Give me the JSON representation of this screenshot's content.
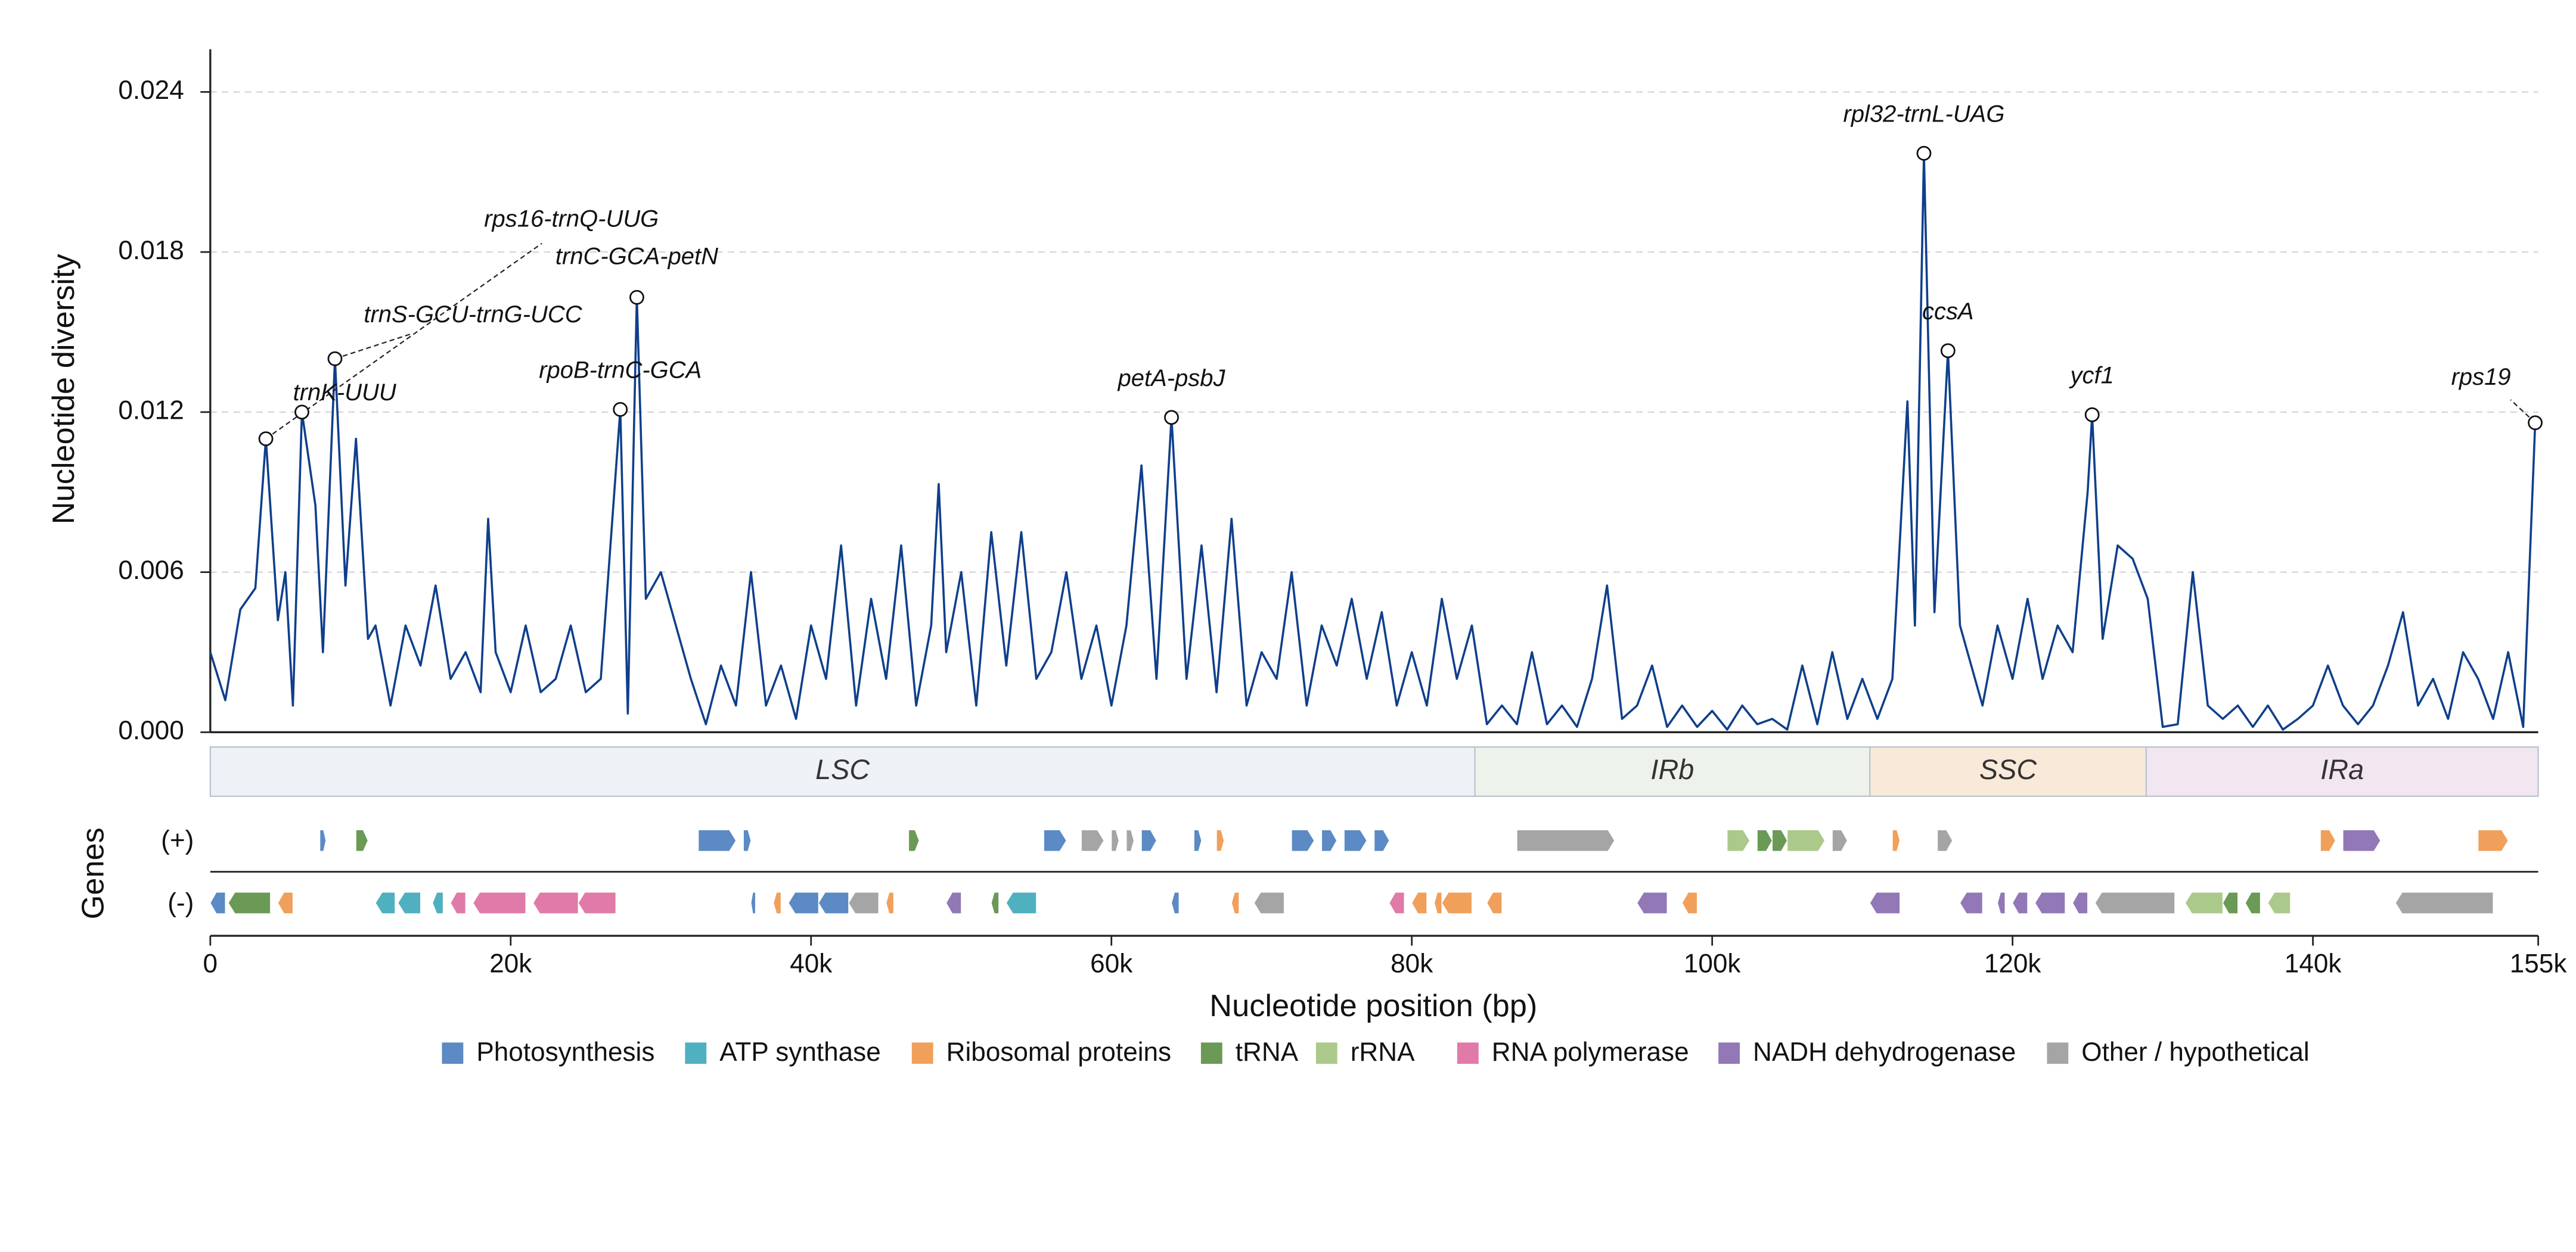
{
  "chart_data": {
    "type": "line",
    "ylabel": "Nucleotide diversity",
    "xlabel": "Nucleotide position (bp)",
    "color": "#0f3f8c",
    "grid": true,
    "xlim": [
      0,
      155000
    ],
    "ylim": [
      0,
      0.0256
    ],
    "yticks": [
      {
        "value": 0,
        "label": "0.000"
      },
      {
        "value": 0.006,
        "label": "0.006"
      },
      {
        "value": 0.012,
        "label": "0.012"
      },
      {
        "value": 0.018,
        "label": "0.018"
      },
      {
        "value": 0.024,
        "label": "0.024"
      }
    ],
    "xticks": [
      0,
      {
        "value": 20000,
        "label": "20k"
      },
      {
        "value": 40000,
        "label": "40k"
      },
      {
        "value": 60000,
        "label": "60k"
      },
      {
        "value": 80000,
        "label": "80k"
      },
      {
        "value": 100000,
        "label": "100k"
      },
      {
        "value": 120000,
        "label": "120k"
      },
      {
        "value": 140000,
        "label": "140k"
      },
      {
        "value": 155000,
        "label": "155k"
      }
    ],
    "x": [
      0,
      1000,
      2000,
      3000,
      3700,
      4500,
      5000,
      5500,
      6100,
      7000,
      7500,
      8300,
      9000,
      9700,
      10500,
      11000,
      12000,
      13000,
      14000,
      15000,
      16000,
      17000,
      18000,
      18500,
      19000,
      20000,
      21000,
      22000,
      23000,
      24000,
      25000,
      26000,
      27300,
      27800,
      28400,
      29000,
      30000,
      31000,
      32000,
      33000,
      34000,
      35000,
      36000,
      37000,
      38000,
      39000,
      40000,
      41000,
      42000,
      43000,
      44000,
      45000,
      46000,
      47000,
      48000,
      48500,
      49000,
      50000,
      51000,
      52000,
      53000,
      54000,
      55000,
      56000,
      57000,
      58000,
      59000,
      60000,
      61000,
      62000,
      63000,
      64000,
      65000,
      66000,
      67000,
      68000,
      69000,
      70000,
      71000,
      72000,
      73000,
      74000,
      75000,
      76000,
      77000,
      78000,
      79000,
      80000,
      81000,
      82000,
      83000,
      84000,
      85000,
      86000,
      87000,
      88000,
      89000,
      90000,
      91000,
      92000,
      93000,
      94000,
      95000,
      96000,
      97000,
      98000,
      99000,
      100000,
      101000,
      102000,
      103000,
      104000,
      105000,
      106000,
      107000,
      108000,
      109000,
      110000,
      111000,
      112000,
      113000,
      113500,
      114100,
      114800,
      115700,
      116500,
      117000,
      118000,
      119000,
      120000,
      121000,
      122000,
      123000,
      124000,
      125000,
      125300,
      126000,
      127000,
      128000,
      129000,
      130000,
      131000,
      132000,
      133000,
      134000,
      135000,
      136000,
      137000,
      138000,
      139000,
      140000,
      141000,
      142000,
      143000,
      144000,
      145000,
      146000,
      147000,
      148000,
      149000,
      150000,
      151000,
      152000,
      153000,
      154000,
      154800
    ],
    "values": [
      0.003,
      0.0012,
      0.0046,
      0.0054,
      0.011,
      0.0042,
      0.006,
      0.001,
      0.012,
      0.0085,
      0.003,
      0.014,
      0.0055,
      0.011,
      0.0035,
      0.004,
      0.001,
      0.004,
      0.0025,
      0.0055,
      0.002,
      0.003,
      0.0015,
      0.008,
      0.003,
      0.0015,
      0.004,
      0.0015,
      0.002,
      0.004,
      0.0015,
      0.002,
      0.0121,
      0.0007,
      0.0163,
      0.005,
      0.006,
      0.004,
      0.002,
      0.0003,
      0.0025,
      0.001,
      0.006,
      0.001,
      0.0025,
      0.0005,
      0.004,
      0.002,
      0.007,
      0.001,
      0.005,
      0.002,
      0.007,
      0.001,
      0.004,
      0.0093,
      0.003,
      0.006,
      0.001,
      0.0075,
      0.0025,
      0.0075,
      0.002,
      0.003,
      0.006,
      0.002,
      0.004,
      0.001,
      0.004,
      0.01,
      0.002,
      0.0118,
      0.002,
      0.007,
      0.0015,
      0.008,
      0.001,
      0.003,
      0.002,
      0.006,
      0.001,
      0.004,
      0.0025,
      0.005,
      0.002,
      0.0045,
      0.001,
      0.003,
      0.001,
      0.005,
      0.002,
      0.004,
      0.0003,
      0.001,
      0.0003,
      0.003,
      0.0003,
      0.001,
      0.0002,
      0.002,
      0.0055,
      0.0005,
      0.001,
      0.0025,
      0.0002,
      0.001,
      0.0002,
      0.0008,
      0.0001,
      0.001,
      0.0003,
      0.0005,
      0.0001,
      0.0025,
      0.0003,
      0.003,
      0.0005,
      0.002,
      0.0005,
      0.002,
      0.0124,
      0.004,
      0.0217,
      0.0045,
      0.0143,
      0.004,
      0.003,
      0.001,
      0.004,
      0.002,
      0.005,
      0.002,
      0.004,
      0.003,
      0.009,
      0.0119,
      0.0035,
      0.007,
      0.0065,
      0.005,
      0.0002,
      0.0003,
      0.006,
      0.001,
      0.0005,
      0.001,
      0.0002,
      0.001,
      0.0001,
      0.0005,
      0.001,
      0.0025,
      0.001,
      0.0003,
      0.001,
      0.0025,
      0.0045,
      0.001,
      0.002,
      0.0005,
      0.003,
      0.002,
      0.0005,
      0.003,
      0.0002,
      0.0116
    ],
    "annotations": [
      {
        "text": "rps16-trnQ-UUG",
        "x": 3700,
        "y": 0.011
      },
      {
        "text": "trnK-UUU",
        "x": 6100,
        "y": 0.012
      },
      {
        "text": "trnS-GCU-trnG-UCC",
        "x": 8300,
        "y": 0.014
      },
      {
        "text": "rpoB-trnC-GCA",
        "x": 27300,
        "y": 0.0121
      },
      {
        "text": "trnC-GCA-petN",
        "x": 28400,
        "y": 0.0163
      },
      {
        "text": "petA-psbJ",
        "x": 64000,
        "y": 0.0118
      },
      {
        "text": "rpl32-trnL-UAG",
        "x": 114100,
        "y": 0.0217
      },
      {
        "text": "ccsA",
        "x": 115700,
        "y": 0.0143
      },
      {
        "text": "ycf1",
        "x": 125300,
        "y": 0.0119
      },
      {
        "text": "rps19",
        "x": 154800,
        "y": 0.0116
      }
    ],
    "regions": [
      {
        "name": "LSC",
        "start": 0,
        "end": 84200,
        "color": "#eef2f6"
      },
      {
        "name": "IRb",
        "start": 84200,
        "end": 110500,
        "color": "#edf3ea"
      },
      {
        "name": "SSC",
        "start": 110500,
        "end": 128900,
        "color": "#f9e9d9"
      },
      {
        "name": "IRa",
        "start": 128900,
        "end": 155000,
        "color": "#f2e6f1"
      }
    ],
    "gene_axis_label": "Genes",
    "strand_labels": [
      "(+)",
      "(-)"
    ],
    "gene_categories": [
      {
        "name": "Photosynthesis",
        "color": "#5b8ac4",
        "plus": [
          [
            7300,
            7700
          ],
          [
            32500,
            35000
          ],
          [
            35500,
            36000
          ],
          [
            55500,
            57000
          ],
          [
            62000,
            63000
          ],
          [
            65500,
            66000
          ],
          [
            72000,
            73500
          ],
          [
            74000,
            75000
          ],
          [
            75500,
            77000
          ],
          [
            77500,
            78500
          ]
        ],
        "minus": [
          [
            0,
            1000
          ],
          [
            36000,
            36300
          ],
          [
            38500,
            40500
          ],
          [
            40500,
            42500
          ],
          [
            64000,
            64500
          ]
        ]
      },
      {
        "name": "ATP synthase",
        "color": "#4fb0c0",
        "plus": [],
        "minus": [
          [
            11000,
            12300
          ],
          [
            12500,
            14000
          ],
          [
            14800,
            15500
          ],
          [
            53000,
            55000
          ]
        ]
      },
      {
        "name": "Ribosomal proteins",
        "color": "#f0a05a",
        "plus": [
          [
            67000,
            67500
          ],
          [
            112000,
            112500
          ],
          [
            140500,
            141500
          ],
          [
            151000,
            153000
          ]
        ],
        "minus": [
          [
            4500,
            5500
          ],
          [
            37500,
            38000
          ],
          [
            45000,
            45500
          ],
          [
            68000,
            68500
          ],
          [
            80000,
            81000
          ],
          [
            81500,
            82000
          ],
          [
            82000,
            84000
          ],
          [
            85000,
            86000
          ],
          [
            98000,
            99000
          ]
        ]
      },
      {
        "name": "tRNA",
        "color": "#6a9a55",
        "plus": [
          [
            9700,
            10500
          ],
          [
            46500,
            47200
          ],
          [
            103000,
            104000
          ],
          [
            104000,
            105000
          ]
        ],
        "minus": [
          [
            1200,
            4000
          ],
          [
            52000,
            52500
          ],
          [
            134000,
            135000
          ],
          [
            135500,
            136500
          ]
        ]
      },
      {
        "name": "rRNA",
        "color": "#abc98a",
        "plus": [
          [
            101000,
            102500
          ],
          [
            105000,
            107500
          ]
        ],
        "minus": [
          [
            131500,
            134000
          ],
          [
            137000,
            138500
          ]
        ]
      },
      {
        "name": "RNA polymerase",
        "color": "#e07aa8",
        "plus": [],
        "minus": [
          [
            16000,
            17000
          ],
          [
            17500,
            21000
          ],
          [
            21500,
            24500
          ],
          [
            24500,
            27000
          ],
          [
            78500,
            79500
          ]
        ]
      },
      {
        "name": "NADH dehydrogenase",
        "color": "#9278b6",
        "plus": [
          [
            142000,
            144500
          ]
        ],
        "minus": [
          [
            49000,
            50000
          ],
          [
            95000,
            97000
          ],
          [
            110500,
            112500
          ],
          [
            116500,
            118000
          ],
          [
            119000,
            119500
          ],
          [
            120000,
            121000
          ],
          [
            121500,
            123500
          ],
          [
            124000,
            125000
          ]
        ]
      },
      {
        "name": "Other / hypothetical",
        "color": "#a5a5a5",
        "plus": [
          [
            58000,
            59500
          ],
          [
            60000,
            60500
          ],
          [
            61000,
            61500
          ],
          [
            87000,
            93500
          ],
          [
            108000,
            109000
          ],
          [
            115000,
            116000
          ]
        ],
        "minus": [
          [
            42500,
            44500
          ],
          [
            69500,
            71500
          ],
          [
            125500,
            130800
          ],
          [
            145500,
            152000
          ]
        ]
      }
    ]
  }
}
